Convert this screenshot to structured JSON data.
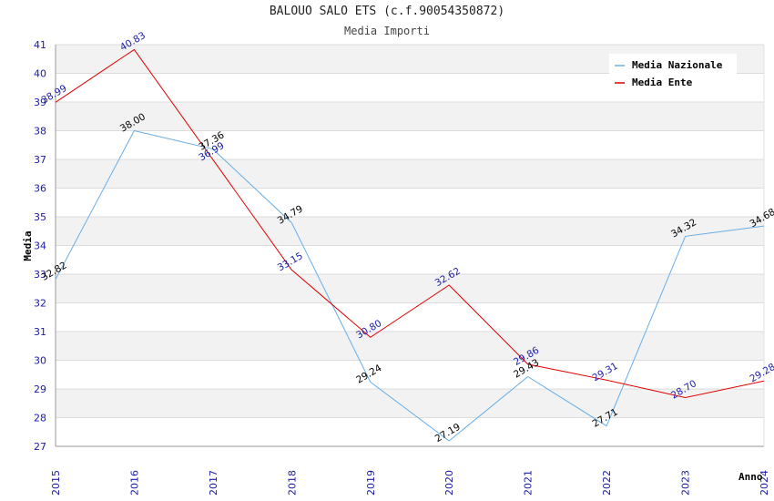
{
  "chart_data": {
    "type": "line",
    "title": "BALOUO SALO ETS (c.f.90054350872)",
    "subtitle": "Media Importi",
    "xlabel": "Anno",
    "ylabel": "Media",
    "ylim": [
      27,
      41
    ],
    "y_ticks": [
      "27",
      "28",
      "29",
      "30",
      "31",
      "32",
      "33",
      "34",
      "35",
      "36",
      "37",
      "38",
      "39",
      "40",
      "41"
    ],
    "categories": [
      "2015",
      "2016",
      "2017",
      "2018",
      "2019",
      "2020",
      "2021",
      "2022",
      "2023",
      "2024"
    ],
    "legend_position": "top-right",
    "grid": true,
    "series": [
      {
        "name": "Media Nazionale",
        "color": "#6aaee6",
        "label_color": "#000000",
        "values": [
          32.82,
          38.0,
          37.36,
          34.79,
          29.24,
          27.19,
          29.43,
          27.71,
          34.32,
          34.68
        ],
        "labels": [
          "32.82",
          "38.00",
          "37.36",
          "34.79",
          "29.24",
          "27.19",
          "29.43",
          "27.71",
          "34.32",
          "34.68"
        ]
      },
      {
        "name": "Media Ente",
        "color": "#e00000",
        "label_color": "#1a1aa6",
        "values": [
          38.99,
          40.83,
          36.99,
          33.15,
          30.8,
          32.62,
          29.86,
          29.31,
          28.7,
          29.28
        ],
        "labels": [
          "38.99",
          "40.83",
          "36.99",
          "33.15",
          "30.80",
          "32.62",
          "29.86",
          "29.31",
          "28.70",
          "29.28"
        ]
      }
    ]
  }
}
